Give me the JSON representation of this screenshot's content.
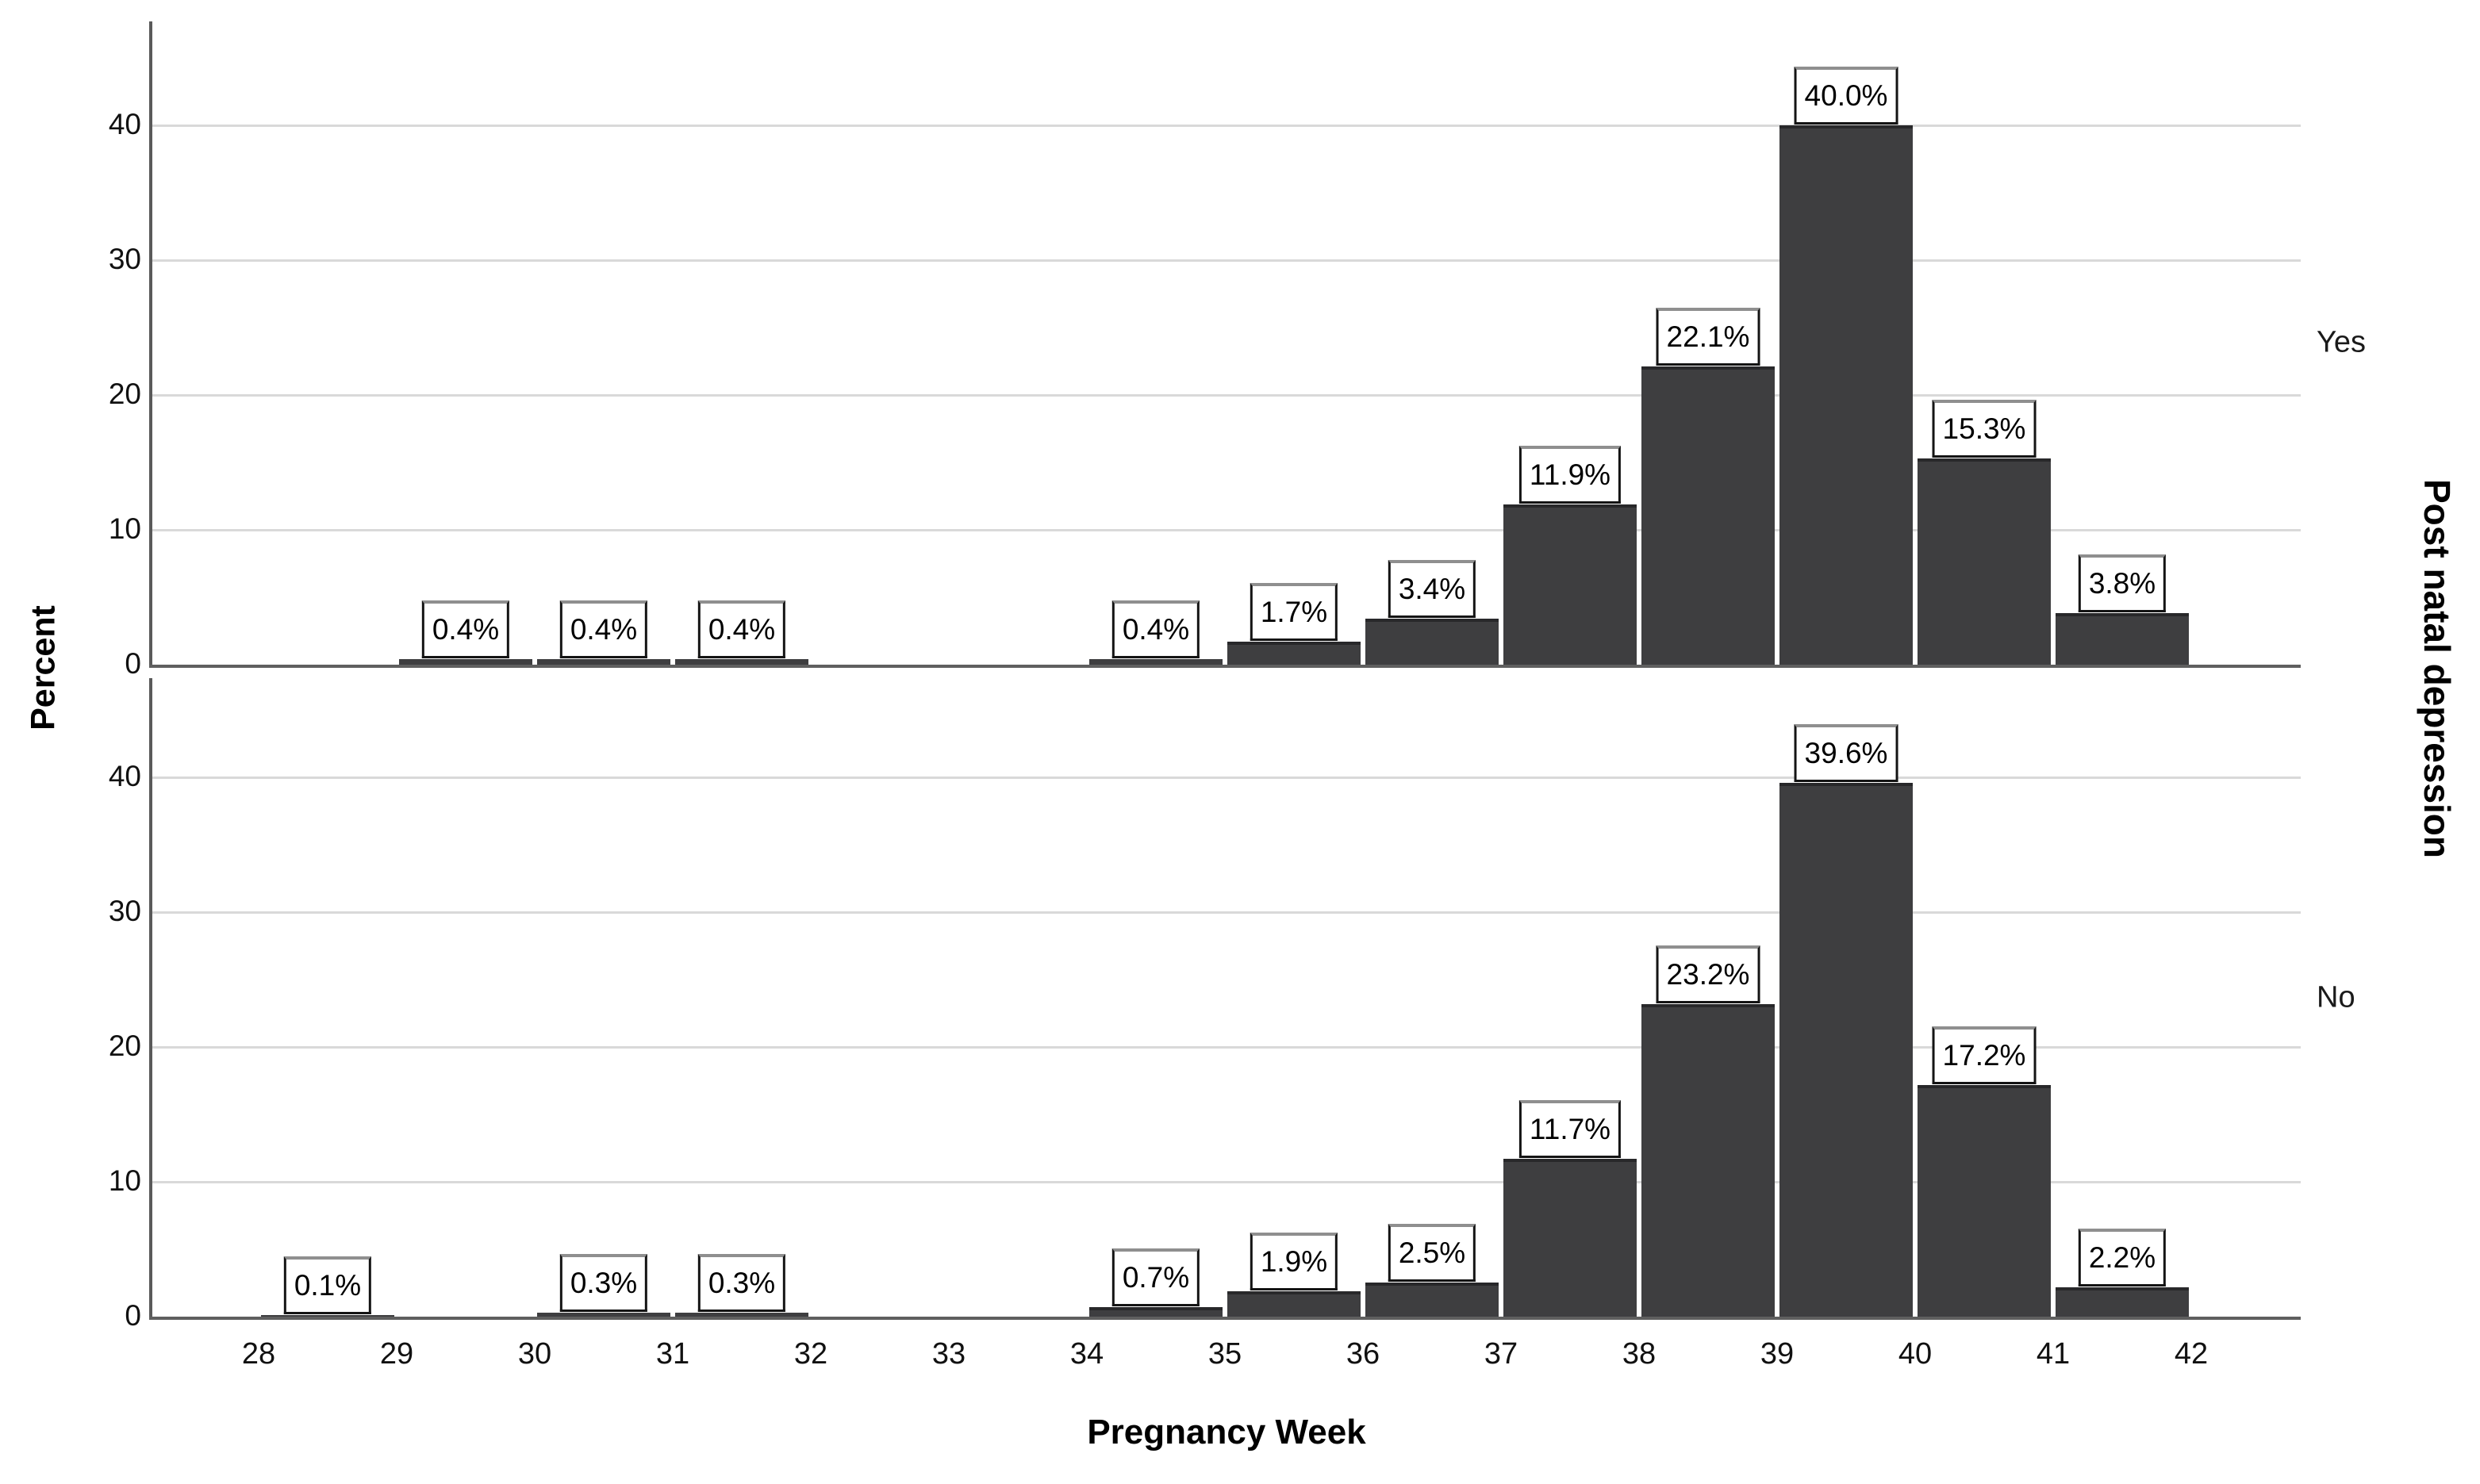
{
  "chart_data": {
    "type": "bar",
    "title": "",
    "xlabel": "Pregnancy Week",
    "ylabel": "Percent",
    "facet_label": "Post natal depression",
    "facet_side": "right",
    "x_tick_labels": [
      "28",
      "29",
      "30",
      "31",
      "32",
      "33",
      "34",
      "35",
      "36",
      "37",
      "38",
      "39",
      "40",
      "41",
      "42"
    ],
    "bin_start_weeks": [
      28,
      29,
      30,
      31,
      32,
      33,
      34,
      35,
      36,
      37,
      38,
      39,
      40,
      41
    ],
    "y_ticks": [
      0,
      10,
      20,
      30,
      40
    ],
    "ylim": [
      0,
      47.6
    ],
    "grid": true,
    "legend": "none",
    "panel_layout": "rows",
    "bar_color": "#3E3E40",
    "bar_top_edge_color": "#28282A",
    "gridline_color": "#D9D9D9",
    "axis_line_color": "#5F5F5F",
    "label_box_border_color": "#141414",
    "label_box_bevel_color": "#8F8F8F",
    "series": [
      {
        "name": "Yes",
        "values": [
          null,
          0.4,
          0.4,
          0.4,
          null,
          null,
          0.4,
          1.7,
          3.4,
          11.9,
          22.1,
          40.0,
          15.3,
          3.8
        ],
        "labels": [
          "",
          "0.4%",
          "0.4%",
          "0.4%",
          "",
          "",
          "0.4%",
          "1.7%",
          "3.4%",
          "11.9%",
          "22.1%",
          "40.0%",
          "15.3%",
          "3.8%"
        ]
      },
      {
        "name": "No",
        "values": [
          0.1,
          null,
          0.3,
          0.3,
          null,
          null,
          0.7,
          1.9,
          2.5,
          11.7,
          23.2,
          39.6,
          17.2,
          2.2
        ],
        "labels": [
          "0.1%",
          "",
          "0.3%",
          "0.3%",
          "",
          "",
          "0.7%",
          "1.9%",
          "2.5%",
          "11.7%",
          "23.2%",
          "39.6%",
          "17.2%",
          "2.2%"
        ]
      }
    ]
  }
}
